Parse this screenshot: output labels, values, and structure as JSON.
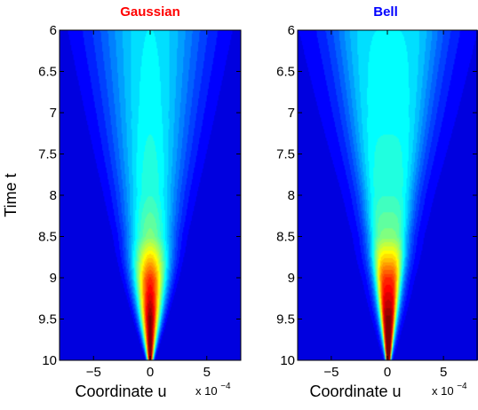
{
  "colormap": "jet",
  "chart_data": [
    {
      "type": "heatmap",
      "title": "Gaussian",
      "title_color": "#ff0000",
      "xlabel": "Coordinate u",
      "ylabel": "Time t",
      "x_multiplier_label": "x 10",
      "x_multiplier_exponent": "−4",
      "xlim": [
        -0.0008,
        0.0008
      ],
      "ylim": [
        6,
        10
      ],
      "y_reversed": true,
      "xticks": [
        -0.0005,
        0,
        0.0005
      ],
      "xtick_labels": [
        "−5",
        "0",
        "5"
      ],
      "yticks": [
        6,
        6.5,
        7,
        7.5,
        8,
        8.5,
        9,
        9.5,
        10
      ],
      "ytick_labels": [
        "6",
        "6.5",
        "7",
        "7.5",
        "8",
        "8.5",
        "9",
        "9.5",
        "10"
      ],
      "profile": "gaussian",
      "width_at_t": [
        [
          6,
          0.00072
        ],
        [
          7,
          0.00056
        ],
        [
          8,
          0.00039
        ],
        [
          9,
          0.00021
        ],
        [
          10,
          3.5e-05
        ]
      ],
      "peak_at_t": [
        [
          6,
          0.28
        ],
        [
          7,
          0.3
        ],
        [
          8,
          0.34
        ],
        [
          8.5,
          0.42
        ],
        [
          9,
          0.75
        ],
        [
          9.5,
          0.92
        ],
        [
          10,
          1.0
        ]
      ]
    },
    {
      "type": "heatmap",
      "title": "Bell",
      "title_color": "#0000ff",
      "xlabel": "Coordinate u",
      "ylabel": "",
      "x_multiplier_label": "x 10",
      "x_multiplier_exponent": "−4",
      "xlim": [
        -0.0008,
        0.0008
      ],
      "ylim": [
        6,
        10
      ],
      "y_reversed": true,
      "xticks": [
        -0.0005,
        0,
        0.0005
      ],
      "xtick_labels": [
        "−5",
        "0",
        "5"
      ],
      "yticks": [
        6,
        6.5,
        7,
        7.5,
        8,
        8.5,
        9,
        9.5,
        10
      ],
      "ytick_labels": [
        "6",
        "6.5",
        "7",
        "7.5",
        "8",
        "8.5",
        "9",
        "9.5",
        "10"
      ],
      "profile": "bell",
      "width_at_t": [
        [
          6,
          0.00074
        ],
        [
          7,
          0.00056
        ],
        [
          8,
          0.00036
        ],
        [
          9,
          0.00017
        ],
        [
          10,
          3e-05
        ]
      ],
      "peak_at_t": [
        [
          6,
          0.28
        ],
        [
          7,
          0.3
        ],
        [
          8,
          0.34
        ],
        [
          8.5,
          0.42
        ],
        [
          9,
          0.75
        ],
        [
          9.5,
          0.92
        ],
        [
          10,
          1.0
        ]
      ]
    }
  ]
}
